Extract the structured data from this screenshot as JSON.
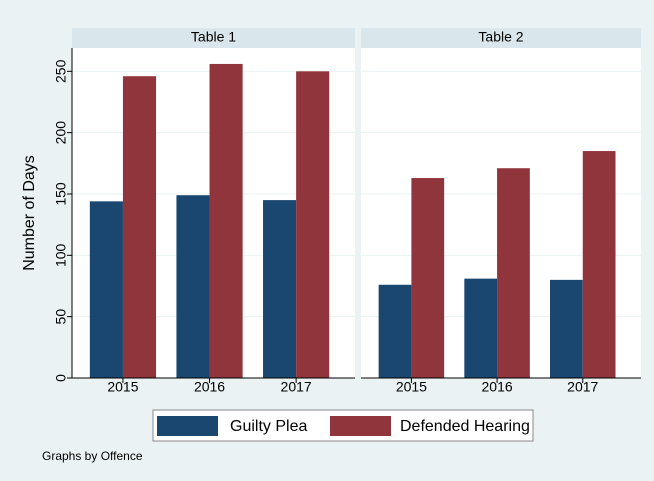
{
  "chart_data": [
    {
      "type": "bar",
      "title": "Table 1",
      "y_label": "Number of Days",
      "categories": [
        "2015",
        "2016",
        "2017"
      ],
      "series": [
        {
          "name": "Guilty Plea",
          "color": "#1a476f",
          "values": [
            144,
            149,
            145
          ]
        },
        {
          "name": "Defended Hearing",
          "color": "#90353b",
          "values": [
            246,
            256,
            250
          ]
        }
      ],
      "ylim": [
        0,
        269
      ],
      "yticks": [
        0,
        50,
        100,
        150,
        200,
        250
      ],
      "grid": true
    },
    {
      "type": "bar",
      "title": "Table 2",
      "categories": [
        "2015",
        "2016",
        "2017"
      ],
      "series": [
        {
          "name": "Guilty Plea",
          "color": "#1a476f",
          "values": [
            76,
            81,
            80
          ]
        },
        {
          "name": "Defended Hearing",
          "color": "#90353b",
          "values": [
            163,
            171,
            185
          ]
        }
      ],
      "ylim": [
        0,
        269
      ],
      "yticks": [
        0,
        50,
        100,
        150,
        200,
        250
      ],
      "grid": true
    }
  ],
  "note": "Graphs by Offence"
}
